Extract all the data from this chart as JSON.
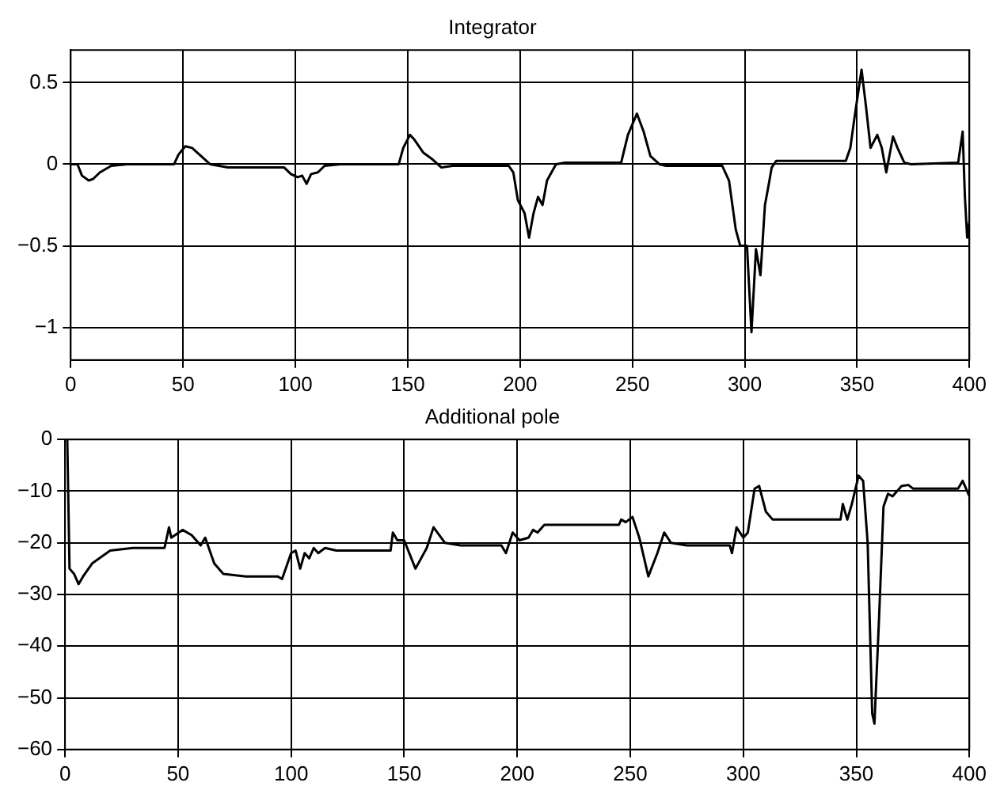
{
  "chart_data": [
    {
      "type": "line",
      "title": "Integrator",
      "xlim": [
        0,
        400
      ],
      "xticks": [
        0,
        50,
        100,
        150,
        200,
        250,
        300,
        350,
        400
      ],
      "ylim": [
        -1.2,
        0.7
      ],
      "yticks": [
        -1,
        -0.5,
        0,
        0.5
      ],
      "grid": true,
      "legend": false,
      "marker": "none",
      "line_style": "solid",
      "series": [
        {
          "color": "#000000",
          "x": [
            0,
            3,
            5,
            8,
            10,
            13,
            18,
            25,
            46,
            48,
            51,
            54,
            58,
            62,
            70,
            95,
            98,
            101,
            103,
            105,
            107,
            110,
            113,
            120,
            146,
            148,
            151,
            153,
            157,
            161,
            165,
            170,
            195,
            197,
            199,
            202,
            204,
            206,
            208,
            210,
            212,
            214,
            216,
            220,
            245,
            248,
            252,
            255,
            258,
            262,
            265,
            290,
            293,
            296,
            298,
            301,
            303,
            305,
            307,
            309,
            311,
            312,
            314,
            320,
            345,
            347,
            349,
            352,
            354,
            356,
            359,
            361,
            363,
            366,
            368,
            371,
            374,
            395,
            397,
            398,
            399,
            400
          ],
          "values": [
            0,
            0,
            -0.07,
            -0.1,
            -0.09,
            -0.05,
            -0.01,
            0,
            0,
            0.06,
            0.11,
            0.1,
            0.05,
            0,
            -0.02,
            -0.02,
            -0.06,
            -0.08,
            -0.07,
            -0.12,
            -0.06,
            -0.05,
            -0.01,
            0,
            0,
            0.1,
            0.18,
            0.15,
            0.07,
            0.03,
            -0.02,
            -0.01,
            -0.01,
            -0.05,
            -0.22,
            -0.3,
            -0.45,
            -0.3,
            -0.2,
            -0.25,
            -0.1,
            -0.05,
            0,
            0.01,
            0.01,
            0.18,
            0.31,
            0.2,
            0.05,
            0,
            -0.01,
            -0.01,
            -0.1,
            -0.4,
            -0.5,
            -0.5,
            -1.03,
            -0.52,
            -0.68,
            -0.25,
            -0.1,
            -0.02,
            0.02,
            0.02,
            0.02,
            0.1,
            0.3,
            0.58,
            0.35,
            0.1,
            0.18,
            0.1,
            -0.05,
            0.17,
            0.1,
            0.01,
            0,
            0.01,
            0.2,
            -0.2,
            -0.45,
            -0.35
          ]
        }
      ]
    },
    {
      "type": "line",
      "title": "Additional pole",
      "xlim": [
        0,
        400
      ],
      "xticks": [
        0,
        50,
        100,
        150,
        200,
        250,
        300,
        350,
        400
      ],
      "ylim": [
        -60,
        0
      ],
      "yticks": [
        -60,
        -50,
        -40,
        -30,
        -20,
        -10,
        0
      ],
      "grid": true,
      "legend": false,
      "marker": "none",
      "line_style": "solid",
      "series": [
        {
          "color": "#000000",
          "x": [
            1,
            2,
            4,
            6,
            8,
            12,
            20,
            30,
            44,
            46,
            47,
            52,
            56,
            60,
            62,
            66,
            70,
            80,
            94,
            96,
            100,
            102,
            104,
            106,
            108,
            110,
            112,
            115,
            120,
            144,
            145,
            147,
            150,
            155,
            160,
            163,
            168,
            175,
            193,
            195,
            198,
            201,
            205,
            207,
            209,
            212,
            245,
            246,
            248,
            251,
            254,
            258,
            262,
            265,
            268,
            275,
            294,
            295,
            297,
            300,
            302,
            305,
            307,
            310,
            313,
            343,
            344,
            346,
            348,
            351,
            353,
            355,
            357,
            358,
            360,
            362,
            364,
            366,
            370,
            373,
            375,
            395,
            397,
            399,
            400
          ],
          "values": [
            0,
            -25,
            -26,
            -28,
            -26.5,
            -24,
            -21.5,
            -21,
            -21,
            -17,
            -19,
            -17.5,
            -18.5,
            -20.5,
            -19,
            -24,
            -26,
            -26.5,
            -26.5,
            -27,
            -22,
            -21.5,
            -25,
            -22,
            -23,
            -21,
            -22,
            -21,
            -21.5,
            -21.5,
            -18,
            -19.5,
            -19.5,
            -25,
            -21,
            -17,
            -20,
            -20.5,
            -20.5,
            -22,
            -18,
            -19.5,
            -19,
            -17.5,
            -18,
            -16.5,
            -16.5,
            -15.5,
            -16,
            -15,
            -19,
            -26.5,
            -22,
            -18,
            -20,
            -20.5,
            -20.5,
            -22,
            -17,
            -19,
            -18,
            -9.5,
            -9,
            -14,
            -15.5,
            -15.5,
            -12.5,
            -15.5,
            -12.5,
            -7,
            -8,
            -20,
            -53,
            -55,
            -35,
            -13,
            -10.5,
            -11,
            -9,
            -8.8,
            -9.5,
            -9.5,
            -8,
            -10,
            -11
          ]
        }
      ]
    }
  ]
}
